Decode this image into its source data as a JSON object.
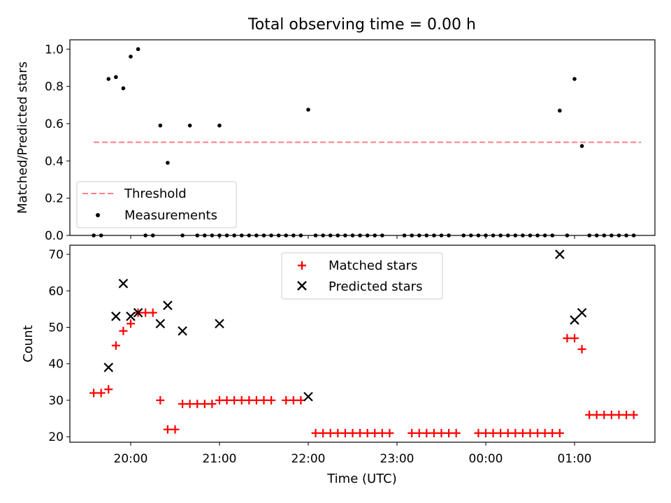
{
  "chart_data": [
    {
      "type": "scatter",
      "title": "Total observing time = 0.00 h",
      "xlabel": "",
      "ylabel": "Matched/Predicted stars",
      "ylim": [
        0.0,
        1.05
      ],
      "yticks": [
        "0.0",
        "0.2",
        "0.4",
        "0.6",
        "0.8",
        "1.0"
      ],
      "grid": false,
      "legend_position": "lower-left",
      "threshold": {
        "name": "Threshold",
        "value": 0.5,
        "x_range": [
          "19:35",
          "01:45"
        ],
        "color": "#ff7f7f",
        "style": "dashed"
      },
      "series": [
        {
          "name": "Measurements",
          "color": "#000000",
          "marker": "dot",
          "x": [
            "19:35",
            "19:40",
            "19:45",
            "19:50",
            "19:55",
            "20:00",
            "20:05",
            "20:10",
            "20:15",
            "20:20",
            "20:25",
            "20:35",
            "20:40",
            "20:45",
            "20:50",
            "20:55",
            "20:60",
            "21:00",
            "21:05",
            "21:10",
            "21:15",
            "21:20",
            "21:25",
            "21:30",
            "21:35",
            "21:40",
            "21:45",
            "21:50",
            "21:55",
            "22:00",
            "22:05",
            "22:10",
            "22:15",
            "22:20",
            "22:25",
            "22:30",
            "22:35",
            "22:40",
            "22:45",
            "22:50",
            "23:05",
            "23:10",
            "23:15",
            "23:20",
            "23:25",
            "23:30",
            "23:35",
            "23:45",
            "23:50",
            "23:55",
            "00:00",
            "00:05",
            "00:10",
            "00:15",
            "00:20",
            "00:25",
            "00:30",
            "00:35",
            "00:40",
            "00:45",
            "00:50",
            "00:55",
            "01:00",
            "01:05",
            "01:10",
            "01:15",
            "01:20",
            "01:25",
            "01:30",
            "01:35",
            "01:40"
          ],
          "values": [
            0.0,
            0.0,
            0.84,
            0.85,
            0.79,
            0.96,
            1.0,
            0.0,
            0.0,
            0.59,
            0.39,
            0.0,
            0.59,
            0.0,
            0.0,
            0.0,
            0.0,
            0.59,
            0.0,
            0.0,
            0.0,
            0.0,
            0.0,
            0.0,
            0.0,
            0.0,
            0.0,
            0.0,
            0.0,
            0.675,
            0.0,
            0.0,
            0.0,
            0.0,
            0.0,
            0.0,
            0.0,
            0.0,
            0.0,
            0.0,
            0.0,
            0.0,
            0.0,
            0.0,
            0.0,
            0.0,
            0.0,
            0.0,
            0.0,
            0.0,
            0.0,
            0.0,
            0.0,
            0.0,
            0.0,
            0.0,
            0.0,
            0.0,
            0.0,
            0.0,
            0.67,
            0.0,
            0.84,
            0.48,
            0.0,
            0.0,
            0.0,
            0.0,
            0.0,
            0.0,
            0.0
          ]
        }
      ]
    },
    {
      "type": "scatter",
      "xlabel": "Time (UTC)",
      "ylabel": "Count",
      "ylim": [
        18.5,
        72.5
      ],
      "yticks": [
        "20",
        "30",
        "40",
        "50",
        "60",
        "70"
      ],
      "xticks": [
        "20:00",
        "21:00",
        "22:00",
        "23:00",
        "00:00",
        "01:00"
      ],
      "grid": false,
      "legend_position": "upper-center",
      "series": [
        {
          "name": "Matched stars",
          "color": "#ff0000",
          "marker": "plus",
          "x": [
            "19:35",
            "19:40",
            "19:45",
            "19:50",
            "19:55",
            "20:00",
            "20:05",
            "20:10",
            "20:15",
            "20:20",
            "20:25",
            "20:30",
            "20:35",
            "20:40",
            "20:45",
            "20:50",
            "20:55",
            "21:00",
            "21:05",
            "21:10",
            "21:15",
            "21:20",
            "21:25",
            "21:30",
            "21:35",
            "21:45",
            "21:50",
            "21:55",
            "22:05",
            "22:10",
            "22:15",
            "22:20",
            "22:25",
            "22:30",
            "22:35",
            "22:40",
            "22:45",
            "22:50",
            "22:55",
            "23:10",
            "23:15",
            "23:20",
            "23:25",
            "23:30",
            "23:35",
            "23:40",
            "23:55",
            "24:00",
            "24:05",
            "24:10",
            "24:15",
            "24:20",
            "24:25",
            "24:30",
            "24:35",
            "24:40",
            "24:45",
            "24:50",
            "24:55",
            "25:00",
            "25:05",
            "25:10",
            "25:15",
            "25:20",
            "25:25",
            "25:30",
            "25:35",
            "25:40"
          ],
          "values": [
            32,
            32,
            33,
            45,
            49,
            51,
            54,
            54,
            54,
            30,
            22,
            22,
            29,
            29,
            29,
            29,
            29,
            30,
            30,
            30,
            30,
            30,
            30,
            30,
            30,
            30,
            30,
            30,
            21,
            21,
            21,
            21,
            21,
            21,
            21,
            21,
            21,
            21,
            21,
            21,
            21,
            21,
            21,
            21,
            21,
            21,
            21,
            21,
            21,
            21,
            21,
            21,
            21,
            21,
            21,
            21,
            21,
            21,
            47,
            47,
            44,
            26,
            26,
            26,
            26,
            26,
            26,
            26
          ]
        },
        {
          "name": "Predicted stars",
          "color": "#000000",
          "marker": "x",
          "x": [
            "19:45",
            "19:50",
            "19:55",
            "20:00",
            "20:05",
            "20:20",
            "20:25",
            "20:35",
            "21:00",
            "22:00",
            "00:50",
            "01:00",
            "01:05"
          ],
          "values": [
            39,
            53,
            62,
            53,
            54,
            51,
            56,
            49,
            51,
            31,
            70,
            52,
            54
          ]
        }
      ]
    }
  ]
}
